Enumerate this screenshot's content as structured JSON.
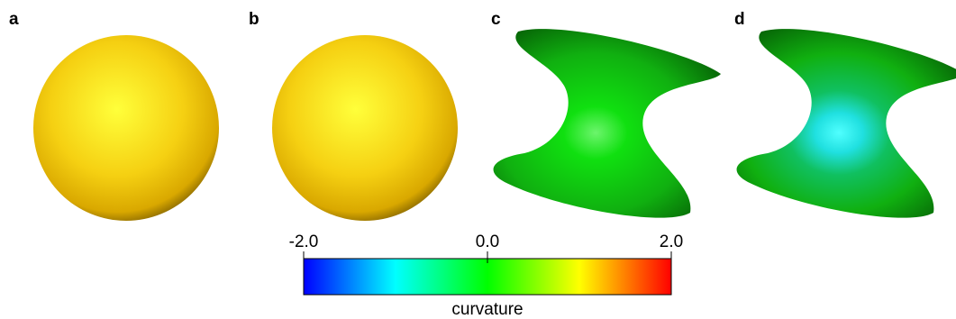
{
  "panels": [
    {
      "label": "a"
    },
    {
      "label": "b"
    },
    {
      "label": "c"
    },
    {
      "label": "d"
    }
  ],
  "colorbar": {
    "label": "curvature",
    "lim": [
      -2,
      2
    ],
    "ticks": [
      {
        "value": -2,
        "label": "-2.0"
      },
      {
        "value": 0,
        "label": "0.0"
      },
      {
        "value": 2,
        "label": "2.0"
      }
    ]
  }
}
